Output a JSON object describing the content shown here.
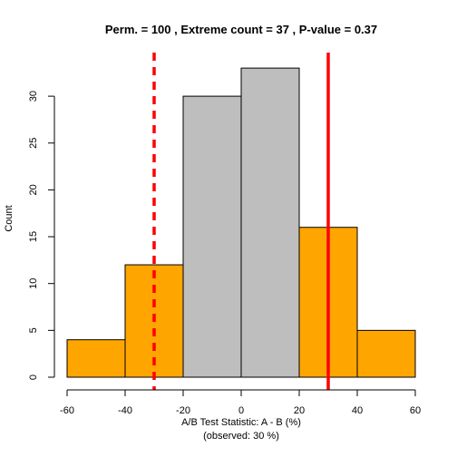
{
  "chart_data": {
    "type": "bar",
    "title": "Perm. = 100 , Extreme count = 37 , P-value = 0.37",
    "xlabel": "A/B Test Statistic: A - B (%)",
    "xlabel_sub": "(observed: 30 %)",
    "ylabel": "Count",
    "xlim": [
      -60,
      60
    ],
    "ylim": [
      0,
      33
    ],
    "x_ticks": [
      -60,
      -40,
      -20,
      0,
      20,
      40,
      60
    ],
    "y_ticks": [
      0,
      5,
      10,
      15,
      20,
      25,
      30
    ],
    "bins": [
      {
        "from": -60,
        "to": -40,
        "count": 4,
        "extreme": true
      },
      {
        "from": -40,
        "to": -20,
        "count": 12,
        "extreme": true
      },
      {
        "from": -20,
        "to": 0,
        "count": 30,
        "extreme": false
      },
      {
        "from": 0,
        "to": 20,
        "count": 33,
        "extreme": false
      },
      {
        "from": 20,
        "to": 40,
        "count": 16,
        "extreme": true
      },
      {
        "from": 40,
        "to": 60,
        "count": 5,
        "extreme": true
      }
    ],
    "reference_lines": [
      {
        "x": -30,
        "style": "dashed",
        "color": "#ff0000"
      },
      {
        "x": 30,
        "style": "solid",
        "color": "#ff0000"
      }
    ],
    "colors": {
      "extreme": "#ffa500",
      "non_extreme": "#bebebe",
      "bar_border": "#000000"
    }
  }
}
